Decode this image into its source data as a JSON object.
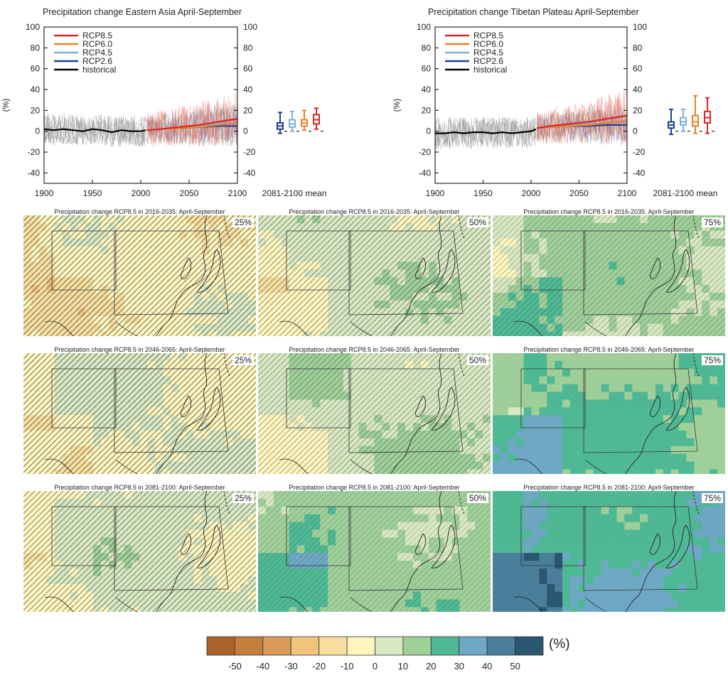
{
  "chart_data": [
    {
      "type": "line",
      "title": "Precipitation change Eastern Asia April-September",
      "ylabel": "(%)",
      "xlim": [
        1900,
        2100
      ],
      "ylim": [
        -50,
        100
      ],
      "xticks": [
        "1900",
        "1950",
        "2000",
        "2050",
        "2100"
      ],
      "yticks": [
        "-40",
        "-20",
        "0",
        "20",
        "40",
        "60",
        "80",
        "100"
      ],
      "yticks_right": [
        "-40",
        "-20",
        "0",
        "20",
        "40",
        "60",
        "80",
        "100"
      ],
      "legend_position": "top-left",
      "legend": [
        "RCP8.5",
        "RCP6.0",
        "RCP4.5",
        "RCP2.6",
        "historical"
      ],
      "series": [
        {
          "name": "historical",
          "color": "#000000",
          "x": [
            1900,
            1910,
            1920,
            1930,
            1940,
            1950,
            1960,
            1970,
            1980,
            1990,
            2000,
            2005
          ],
          "y": [
            2,
            1,
            2,
            1,
            0,
            2,
            1,
            -1,
            1,
            0,
            0,
            1
          ]
        },
        {
          "name": "RCP2.6",
          "color": "#1f3f8f",
          "x": [
            2006,
            2020,
            2040,
            2060,
            2080,
            2100
          ],
          "y": [
            1,
            2,
            3,
            4,
            5,
            5
          ]
        },
        {
          "name": "RCP4.5",
          "color": "#7fb0d8",
          "x": [
            2006,
            2020,
            2040,
            2060,
            2080,
            2100
          ],
          "y": [
            1,
            2,
            3,
            5,
            7,
            8
          ]
        },
        {
          "name": "RCP6.0",
          "color": "#e8822a",
          "x": [
            2006,
            2020,
            2040,
            2060,
            2080,
            2100
          ],
          "y": [
            1,
            2,
            3,
            4,
            6,
            8
          ]
        },
        {
          "name": "RCP8.5",
          "color": "#d62728",
          "x": [
            2006,
            2020,
            2040,
            2060,
            2080,
            2100
          ],
          "y": [
            1,
            2,
            4,
            6,
            9,
            12
          ]
        }
      ],
      "boxplot_label": "2081-2100 mean",
      "boxplots": [
        {
          "name": "RCP2.6",
          "color": "#1f3f8f",
          "min": -2,
          "q1": 2,
          "median": 5,
          "q3": 8,
          "max": 18
        },
        {
          "name": "RCP4.5",
          "color": "#7fb0d8",
          "min": 0,
          "q1": 4,
          "median": 7,
          "q3": 11,
          "max": 19
        },
        {
          "name": "RCP6.0",
          "color": "#e8822a",
          "min": 1,
          "q1": 5,
          "median": 8,
          "q3": 11,
          "max": 20
        },
        {
          "name": "RCP8.5",
          "color": "#d62728",
          "min": 2,
          "q1": 7,
          "median": 11,
          "q3": 16,
          "max": 22
        }
      ]
    },
    {
      "type": "line",
      "title": "Precipitation change Tibetan Plateau April-September",
      "ylabel": "(%)",
      "xlim": [
        1900,
        2100
      ],
      "ylim": [
        -50,
        100
      ],
      "xticks": [
        "1900",
        "1950",
        "2000",
        "2050",
        "2100"
      ],
      "yticks": [
        "-40",
        "-20",
        "0",
        "20",
        "40",
        "60",
        "80",
        "100"
      ],
      "yticks_right": [
        "-40",
        "-20",
        "0",
        "20",
        "40",
        "60",
        "80",
        "100"
      ],
      "legend_position": "top-left",
      "legend": [
        "RCP8.5",
        "RCP6.0",
        "RCP4.5",
        "RCP2.6",
        "historical"
      ],
      "series": [
        {
          "name": "historical",
          "color": "#000000",
          "x": [
            1900,
            1910,
            1920,
            1930,
            1940,
            1950,
            1960,
            1970,
            1980,
            1990,
            2000,
            2005
          ],
          "y": [
            -2,
            -2,
            -1,
            -2,
            -1,
            -1,
            -2,
            -1,
            -2,
            -1,
            0,
            2
          ]
        },
        {
          "name": "RCP2.6",
          "color": "#1f3f8f",
          "x": [
            2006,
            2020,
            2040,
            2060,
            2080,
            2100
          ],
          "y": [
            3,
            4,
            5,
            5,
            6,
            6
          ]
        },
        {
          "name": "RCP4.5",
          "color": "#7fb0d8",
          "x": [
            2006,
            2020,
            2040,
            2060,
            2080,
            2100
          ],
          "y": [
            3,
            4,
            6,
            7,
            8,
            9
          ]
        },
        {
          "name": "RCP6.0",
          "color": "#e8822a",
          "x": [
            2006,
            2020,
            2040,
            2060,
            2080,
            2100
          ],
          "y": [
            3,
            4,
            5,
            6,
            8,
            10
          ]
        },
        {
          "name": "RCP8.5",
          "color": "#d62728",
          "x": [
            2006,
            2020,
            2040,
            2060,
            2080,
            2100
          ],
          "y": [
            3,
            5,
            7,
            9,
            12,
            15
          ]
        }
      ],
      "boxplot_label": "2081-2100 mean",
      "boxplots": [
        {
          "name": "RCP2.6",
          "color": "#1f3f8f",
          "min": -3,
          "q1": 3,
          "median": 6,
          "q3": 9,
          "max": 21
        },
        {
          "name": "RCP4.5",
          "color": "#7fb0d8",
          "min": 0,
          "q1": 6,
          "median": 9,
          "q3": 13,
          "max": 21
        },
        {
          "name": "RCP6.0",
          "color": "#e8822a",
          "min": -2,
          "q1": 5,
          "median": 9,
          "q3": 15,
          "max": 34
        },
        {
          "name": "RCP8.5",
          "color": "#d62728",
          "min": -2,
          "q1": 8,
          "median": 13,
          "q3": 19,
          "max": 32
        }
      ]
    },
    {
      "type": "heatmap",
      "panels": [
        {
          "title": "Precipitation change RCP8.5 in 2016-2035: April-September",
          "percentile": "25%",
          "level": -5
        },
        {
          "title": "Precipitation change RCP8.5 in 2016-2035: April-September",
          "percentile": "50%",
          "level": 5
        },
        {
          "title": "Precipitation change RCP8.5 in 2016-2035: April-September",
          "percentile": "75%",
          "level": 12
        },
        {
          "title": "Precipitation change RCP8.5 in 2046-2065: April-September",
          "percentile": "25%",
          "level": 0
        },
        {
          "title": "Precipitation change RCP8.5 in 2046-2065: April-September",
          "percentile": "50%",
          "level": 8
        },
        {
          "title": "Precipitation change RCP8.5 in 2046-2065: April-September",
          "percentile": "75%",
          "level": 20
        },
        {
          "title": "Precipitation change RCP8.5 in 2081-2100: April-September",
          "percentile": "25%",
          "level": 3
        },
        {
          "title": "Precipitation change RCP8.5 in 2081-2100: April-September",
          "percentile": "50%",
          "level": 15
        },
        {
          "title": "Precipitation change RCP8.5 in 2081-2100: April-September",
          "percentile": "75%",
          "level": 28
        }
      ],
      "colorbar": {
        "unit": "(%)",
        "boundaries": [
          -60,
          -50,
          -40,
          -30,
          -20,
          -10,
          0,
          10,
          20,
          30,
          40,
          50,
          60
        ],
        "tick_labels": [
          "-50",
          "-40",
          "-30",
          "-20",
          "-10",
          "0",
          "10",
          "20",
          "30",
          "40",
          "50"
        ],
        "colors": [
          "#a8622a",
          "#c47e3e",
          "#d99a5c",
          "#f0c47c",
          "#f7de9e",
          "#fdf5bd",
          "#d8e8c2",
          "#9fd09a",
          "#4fb995",
          "#6fa8c4",
          "#4a7e9b",
          "#2a5670"
        ]
      }
    }
  ]
}
